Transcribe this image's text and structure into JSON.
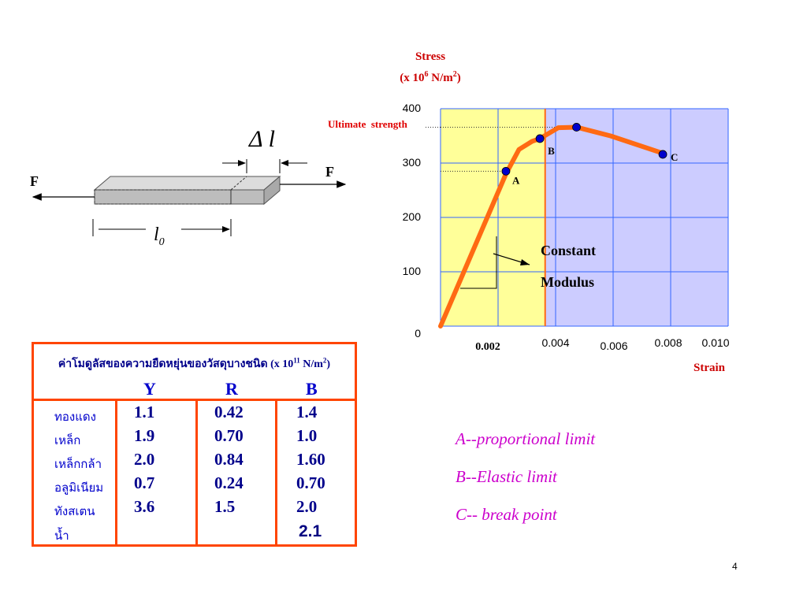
{
  "specimen": {
    "delta_l_label": "Δ l",
    "force_left": "F",
    "force_right": "F",
    "length_label": "l",
    "length_sub": "0"
  },
  "chart_data": {
    "type": "line",
    "ylabel_line1": "Stress",
    "ylabel_line2_prefix": "(x 10",
    "ylabel_exp": "6",
    "ylabel_suffix": " N/m",
    "ylabel_exp2": "2",
    "ylabel_close": ")",
    "xlabel": "Strain",
    "yticks": [
      "0",
      "100",
      "200",
      "300",
      "400"
    ],
    "xticks": [
      "0.002",
      "0.004",
      "0.006",
      "0.008",
      "0.010"
    ],
    "ylim": [
      0,
      400
    ],
    "xlim": [
      0,
      0.011
    ],
    "elastic_region_end": 0.004,
    "curve": [
      {
        "x": 0,
        "y": 0
      },
      {
        "x": 0.0025,
        "y": 280
      },
      {
        "x": 0.003,
        "y": 325
      },
      {
        "x": 0.0035,
        "y": 340
      },
      {
        "x": 0.0038,
        "y": 345
      },
      {
        "x": 0.0045,
        "y": 365
      },
      {
        "x": 0.0052,
        "y": 366
      },
      {
        "x": 0.0065,
        "y": 350
      },
      {
        "x": 0.0085,
        "y": 318
      }
    ],
    "points": [
      {
        "label": "A",
        "x": 0.0025,
        "y": 285
      },
      {
        "label": "B",
        "x": 0.0038,
        "y": 345
      },
      {
        "label": "C",
        "x": 0.0085,
        "y": 316
      },
      {
        "label": "",
        "x": 0.0052,
        "y": 366
      }
    ],
    "annotations": {
      "ultimate": "Ultimate  strength",
      "constant": "Constant",
      "modulus": "Modulus"
    },
    "colors": {
      "curve": "#ff6a13",
      "point": "#0000cc",
      "elastic": "#ffff99",
      "plastic": "#ccccff",
      "grid": "#3366ff"
    }
  },
  "table": {
    "caption": "ค่าโมดูลัสของความยืดหยุ่นของวัสดุบางชนิด (x 10",
    "caption_exp": "11",
    "caption_unit": " N/m",
    "caption_exp2": "2",
    "caption_close": ")",
    "col_y": "Y",
    "col_r": "R",
    "col_b": "B",
    "materials": [
      "ทองแดง",
      "เหล็ก",
      "เหล็กกล้า",
      "อลูมิเนียม",
      "ทังสเตน",
      "น้ำ"
    ],
    "y": [
      "1.1",
      "1.9",
      "2.0",
      "0.7",
      "3.6"
    ],
    "r": [
      "0.42",
      "0.70",
      "0.84",
      "0.24",
      "1.5"
    ],
    "b": [
      "1.4",
      "1.0",
      "1.60",
      "0.70",
      "2.0",
      "2.1"
    ]
  },
  "legend": {
    "a": "A--proportional limit",
    "b": "B--Elastic limit",
    "c": "C-- break point"
  },
  "page_number": "4"
}
